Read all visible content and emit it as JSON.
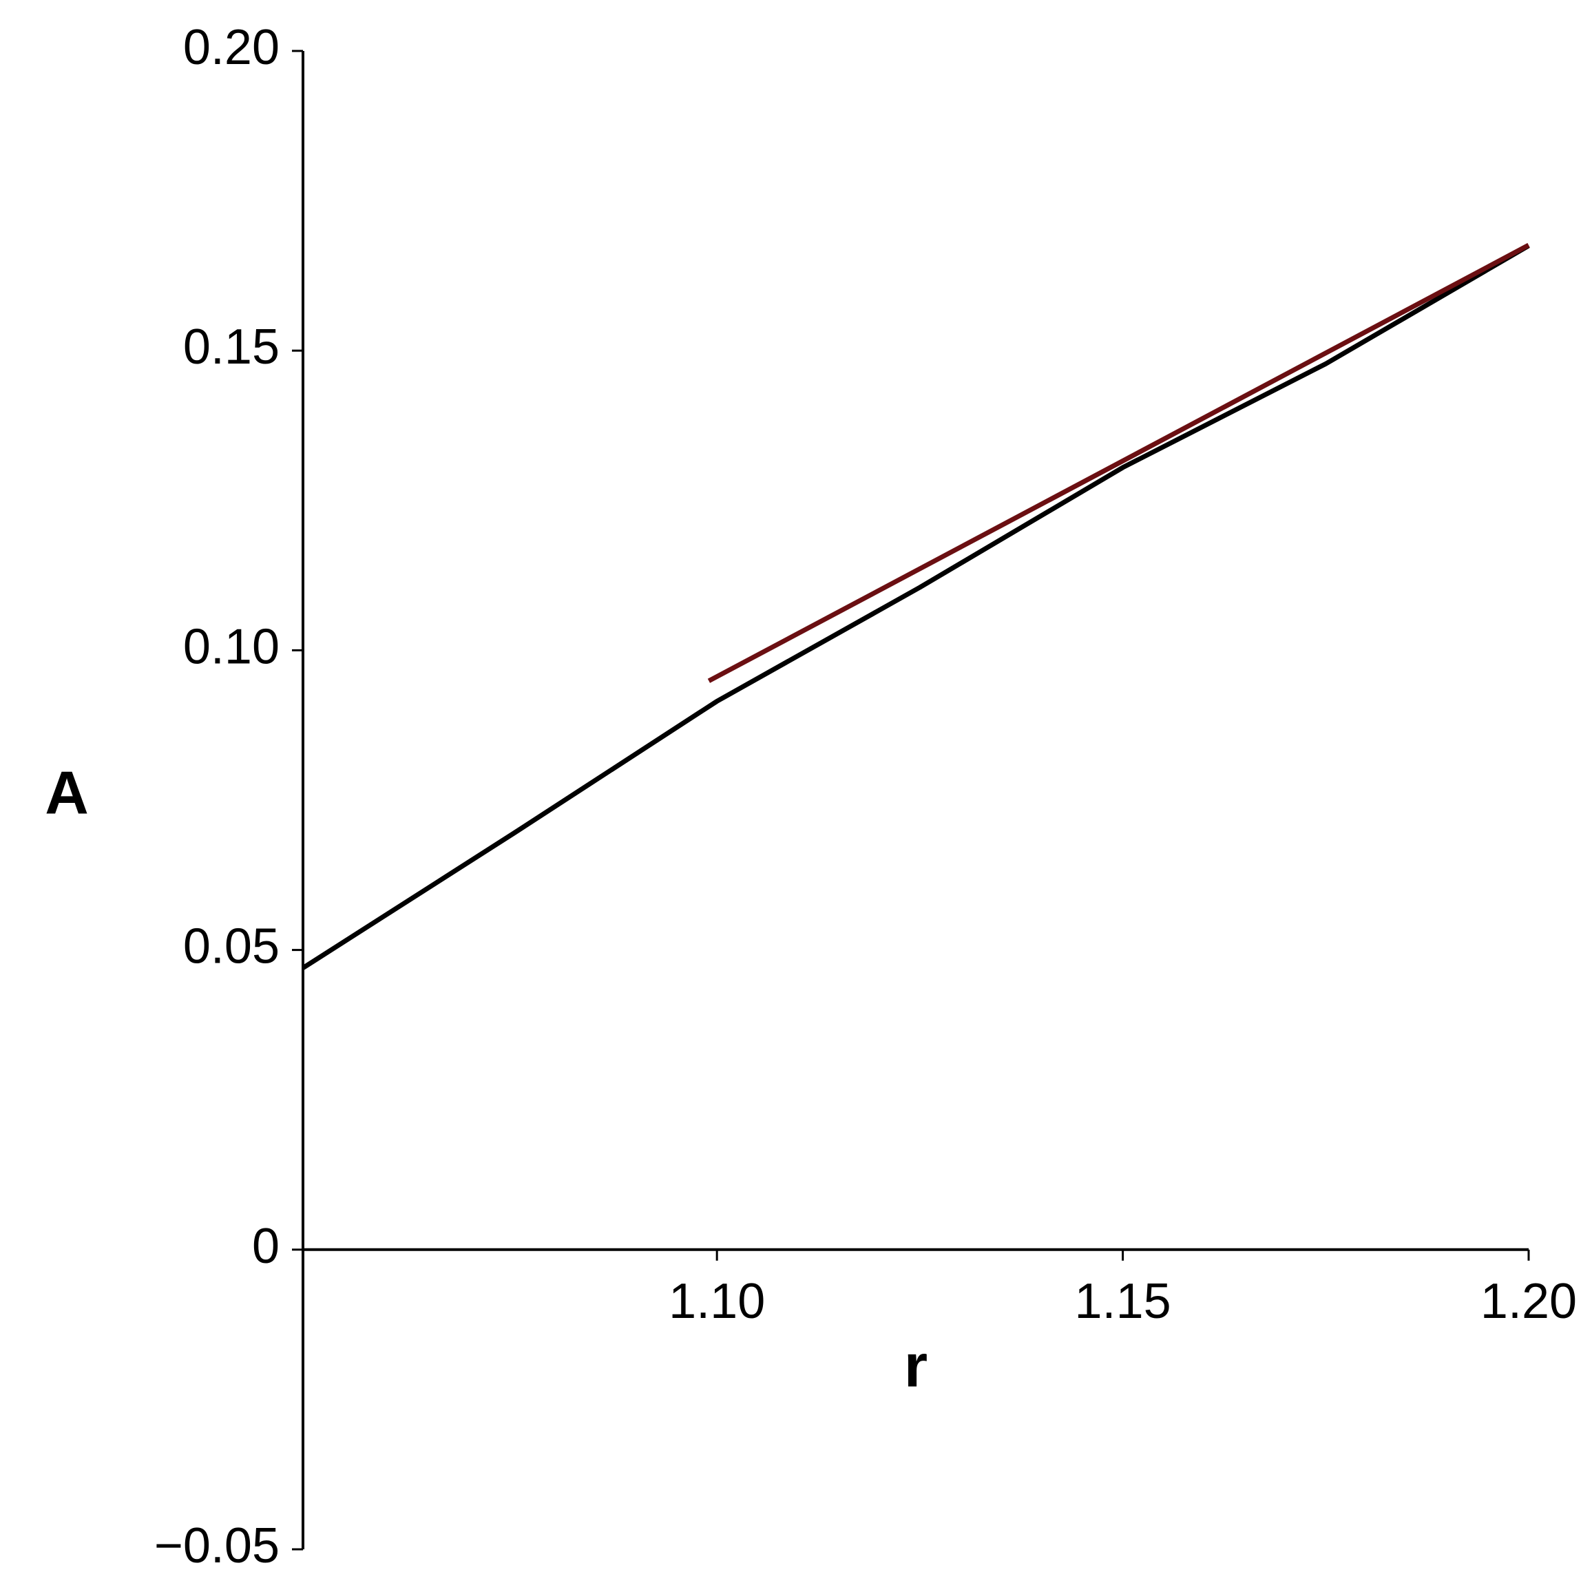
{
  "chart_data": {
    "type": "line",
    "xlabel": "r",
    "ylabel": "A",
    "xlim": [
      1.049,
      1.2
    ],
    "ylim": [
      -0.05,
      0.2
    ],
    "xticks": [
      {
        "value": 1.1,
        "label": "1.10"
      },
      {
        "value": 1.15,
        "label": "1.15"
      },
      {
        "value": 1.2,
        "label": "1.20"
      }
    ],
    "yticks": [
      {
        "value": -0.05,
        "label": "−0.05"
      },
      0,
      0.05,
      {
        "value": 0.1,
        "label": "0.10"
      },
      0.15,
      {
        "value": 0.2,
        "label": "0.20"
      }
    ],
    "series": [
      {
        "color": "#000000",
        "x": [
          1.049,
          1.075,
          1.1,
          1.125,
          1.15,
          1.175,
          1.2
        ],
        "values": [
          0.047,
          0.0695,
          0.0915,
          0.1105,
          0.1305,
          0.1478,
          0.1675
        ]
      },
      {
        "color": "#6b0f12",
        "x": [
          1.099,
          1.15,
          1.2
        ],
        "values": [
          0.0949,
          0.1316,
          0.1676
        ]
      }
    ]
  }
}
